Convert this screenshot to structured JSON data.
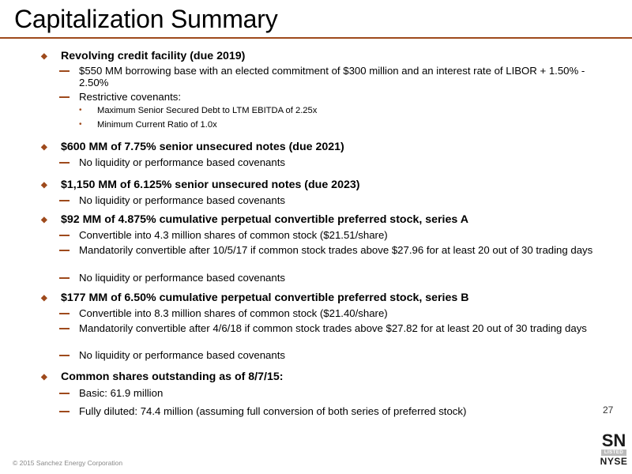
{
  "slide": {
    "title": "Capitalization Summary",
    "page_number": "27",
    "footer": "© 2015 Sanchez Energy Corporation",
    "bullet_glyph": "◆",
    "sub_bullet_glyph": "•",
    "accent_color": "#9e4a1c"
  },
  "logo": {
    "sn": "SN",
    "listed": "LISTED",
    "nyse": "NYSE"
  },
  "bullets": [
    {
      "heading": "Revolving credit facility (due 2019)",
      "items": [
        {
          "text": "$550 MM borrowing base with an elected commitment of $300 million and an interest rate of LIBOR + 1.50% - 2.50%"
        },
        {
          "text": "Restrictive covenants:",
          "subitems": [
            "Maximum Senior Secured Debt to LTM EBITDA of 2.25x",
            "Minimum Current Ratio of 1.0x"
          ]
        }
      ]
    },
    {
      "heading": "$600 MM of 7.75% senior unsecured notes (due 2021)",
      "items": [
        {
          "text": "No liquidity or performance based covenants"
        }
      ]
    },
    {
      "heading": "$1,150 MM of 6.125% senior unsecured notes (due 2023)",
      "items": [
        {
          "text": "No liquidity or performance based covenants"
        }
      ]
    },
    {
      "heading": "$92 MM of 4.875% cumulative perpetual convertible preferred stock, series A",
      "items": [
        {
          "text": "Convertible into 4.3 million shares of common stock ($21.51/share)"
        },
        {
          "text": "Mandatorily convertible after 10/5/17 if common stock trades above $27.96 for at least 20 out of 30 trading days"
        },
        {
          "text": "No liquidity or performance based covenants"
        }
      ]
    },
    {
      "heading": "$177 MM of 6.50% cumulative perpetual convertible preferred stock, series B",
      "items": [
        {
          "text": "Convertible into 8.3 million shares of common stock ($21.40/share)"
        },
        {
          "text": "Mandatorily convertible after 4/6/18 if common stock trades above $27.82 for at least 20 out of 30 trading days"
        },
        {
          "text": "No liquidity or performance based covenants"
        }
      ]
    },
    {
      "heading": "Common shares outstanding as of 8/7/15:",
      "items": [
        {
          "text": "Basic: 61.9 million"
        },
        {
          "text": "Fully diluted: 74.4 million (assuming full conversion of both series of preferred stock)"
        }
      ]
    }
  ]
}
